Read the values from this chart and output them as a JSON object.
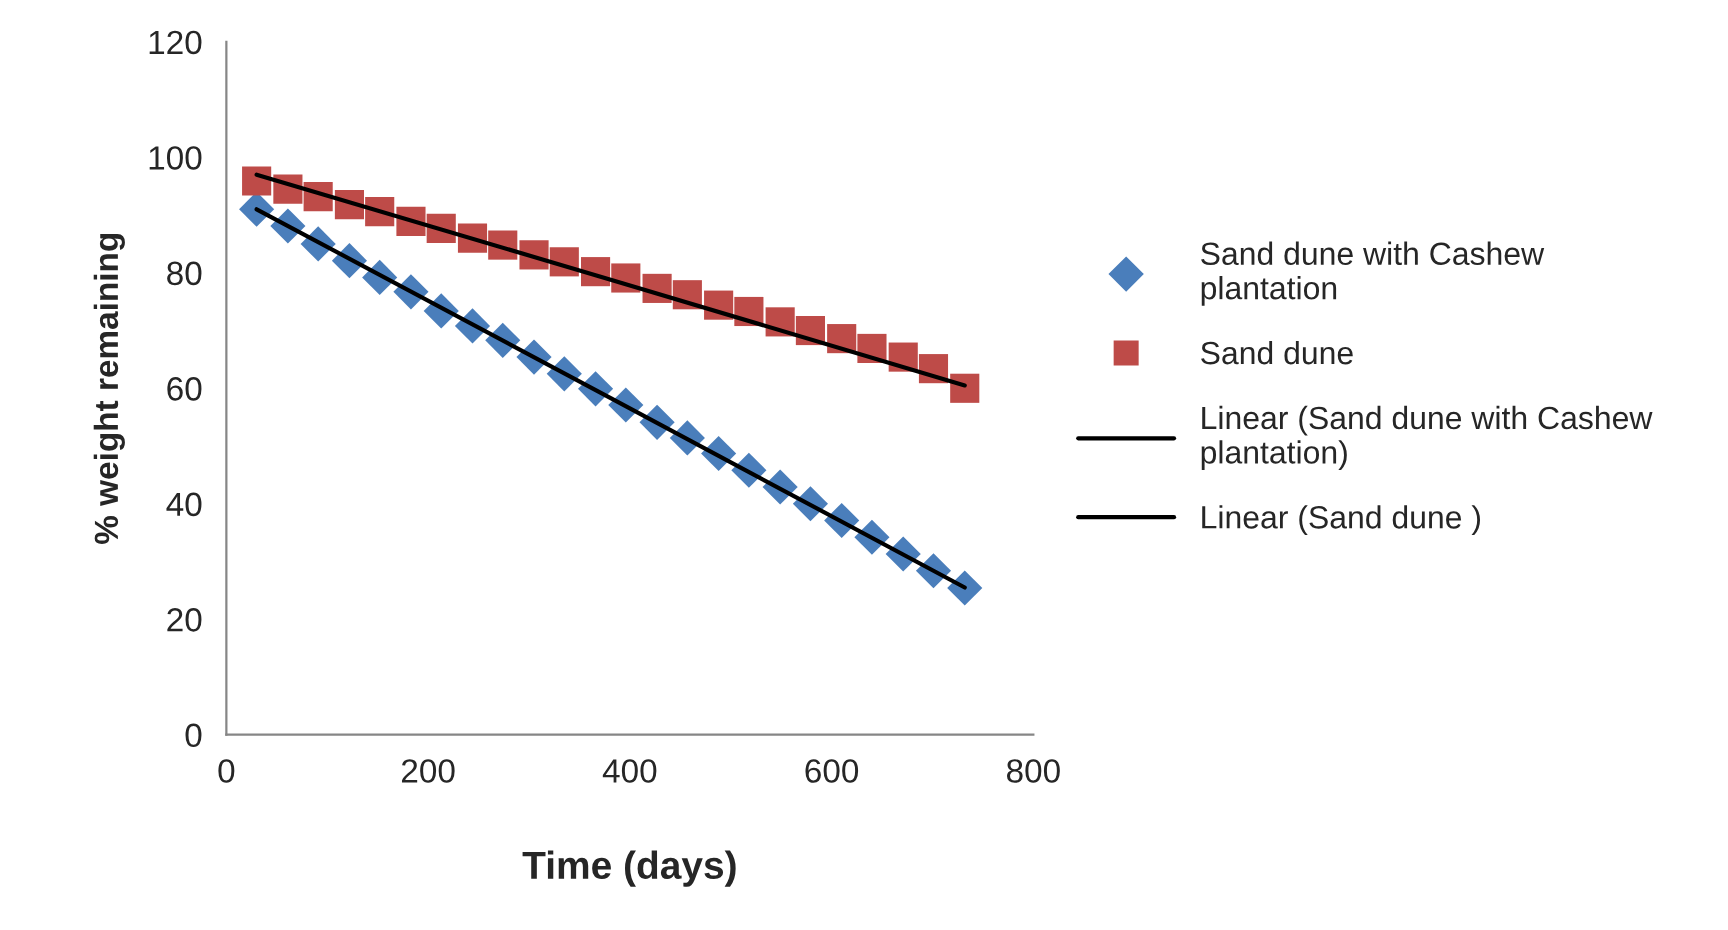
{
  "chart_data": {
    "type": "scatter",
    "xlabel": "Time (days)",
    "ylabel": "% weight remaining",
    "x": [
      30,
      61,
      91,
      122,
      152,
      183,
      213,
      244,
      274,
      305,
      335,
      366,
      396,
      427,
      457,
      488,
      518,
      549,
      579,
      610,
      640,
      671,
      701,
      732
    ],
    "series": [
      {
        "name": "Sand dune with Cashew plantation",
        "color": "#4a7ebb",
        "marker": "diamond",
        "values": [
          91.0,
          88.1,
          85.0,
          82.1,
          79.2,
          76.7,
          73.4,
          70.8,
          68.3,
          65.4,
          62.5,
          59.9,
          57.1,
          54.1,
          51.4,
          48.7,
          45.8,
          42.9,
          40.0,
          37.1,
          34.2,
          31.3,
          28.4,
          25.4
        ]
      },
      {
        "name": "Sand dune",
        "color": "#be4b48",
        "marker": "square",
        "values": [
          95.9,
          94.5,
          93.2,
          91.8,
          90.6,
          88.9,
          87.7,
          86.0,
          84.8,
          83.1,
          81.9,
          80.2,
          79.1,
          77.3,
          76.2,
          74.4,
          73.3,
          71.5,
          70.0,
          68.6,
          66.9,
          65.4,
          63.4,
          60.0
        ]
      },
      {
        "name": "Linear (Sand dune with Cashew plantation)",
        "type": "line",
        "color": "#000000",
        "x": [
          30,
          381,
          732
        ],
        "values": [
          91.0,
          58.3,
          25.5
        ]
      },
      {
        "name": "Linear (Sand dune )",
        "type": "line",
        "color": "#000000",
        "x": [
          30,
          381,
          732
        ],
        "values": [
          97.0,
          78.8,
          60.5
        ]
      }
    ],
    "xlim": [
      0,
      800
    ],
    "xticks": [
      0,
      200,
      400,
      600,
      800
    ],
    "ylim": [
      0,
      120
    ],
    "yticks": [
      0,
      20,
      40,
      60,
      80,
      100,
      120
    ],
    "grid": false,
    "legend": "right"
  }
}
